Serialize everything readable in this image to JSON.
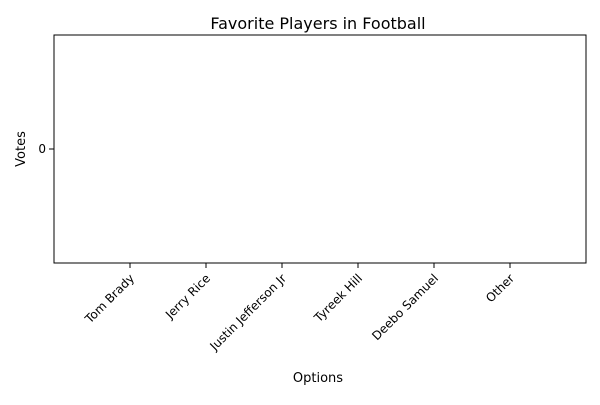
{
  "chart_data": {
    "type": "bar",
    "title": "Favorite Players in Football",
    "xlabel": "Options",
    "ylabel": "Votes",
    "categories": [
      "Tom Brady",
      "Jerry Rice",
      "Justin Jefferson Jr",
      "Tyreek Hill",
      "Deebo Samuel",
      "Other"
    ],
    "values": [
      0,
      0,
      0,
      0,
      0,
      0
    ],
    "yticks": [
      0
    ],
    "ylim": [
      -0.055,
      0.055
    ],
    "grid": false,
    "bar_color": "#1f77b4"
  }
}
